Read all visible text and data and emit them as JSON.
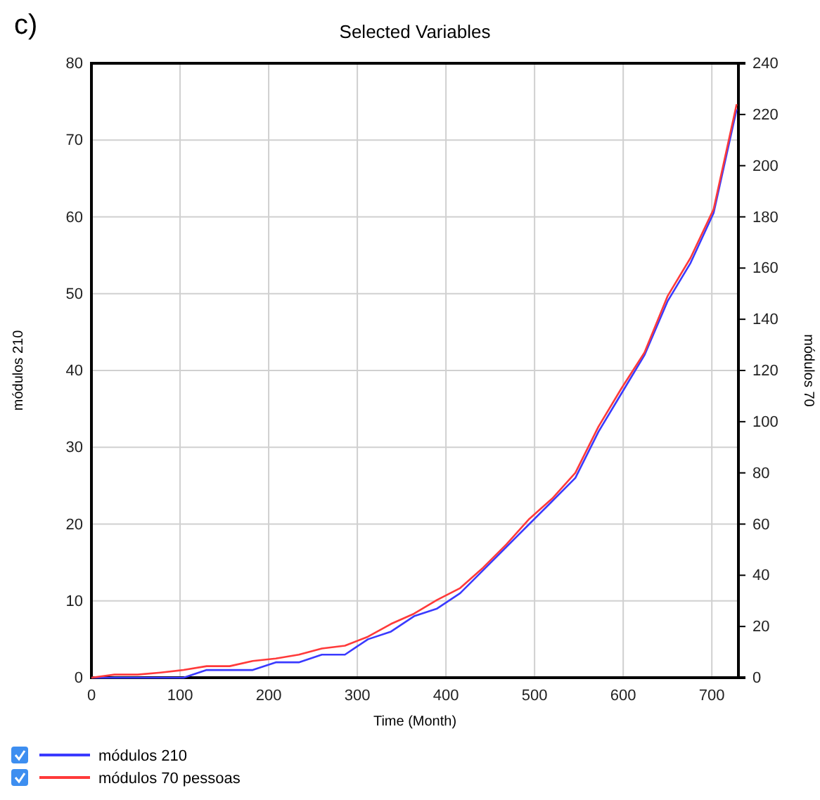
{
  "chart_data": {
    "type": "line",
    "title": "Selected Variables",
    "xlabel": "Time (Month)",
    "ylabel": "módulos 210",
    "y2label": "módulos 70",
    "annotations": [
      "c)"
    ],
    "x": [
      0,
      26,
      52,
      78,
      104,
      130,
      156,
      182,
      208,
      234,
      260,
      286,
      312,
      338,
      364,
      390,
      416,
      442,
      468,
      494,
      520,
      546,
      572,
      598,
      624,
      650,
      676,
      702,
      728
    ],
    "series": [
      {
        "name": "módulos 210",
        "color": "#3a3aff",
        "values": [
          0,
          0,
          0,
          0,
          0,
          1,
          1,
          1,
          2,
          2,
          3,
          3,
          5,
          6,
          8,
          9,
          11,
          14,
          17,
          20,
          23,
          26,
          32,
          37,
          42,
          49,
          54,
          60.5,
          74
        ]
      },
      {
        "name": "módulos 70 pessoas",
        "color": "#ff3a3a",
        "axis": "y2",
        "values": [
          0,
          1.2,
          1.2,
          2,
          3,
          4.5,
          4.5,
          6.5,
          7.5,
          9,
          11.4,
          12.5,
          16,
          21,
          25,
          30.4,
          35,
          43,
          52,
          62,
          70,
          80,
          98,
          113,
          127,
          149,
          164,
          183,
          224
        ]
      }
    ],
    "xlim": [
      0,
      730
    ],
    "xticks": [
      0,
      100,
      200,
      300,
      400,
      500,
      600,
      700
    ],
    "ylim": [
      0,
      80
    ],
    "yticks": [
      0,
      10,
      20,
      30,
      40,
      50,
      60,
      70,
      80
    ],
    "y2lim": [
      0,
      240
    ],
    "y2ticks": [
      0,
      20,
      40,
      60,
      80,
      100,
      120,
      140,
      160,
      180,
      200,
      220,
      240
    ],
    "grid": true,
    "legend": "bottom",
    "line_style": "solid",
    "marker": "none"
  }
}
